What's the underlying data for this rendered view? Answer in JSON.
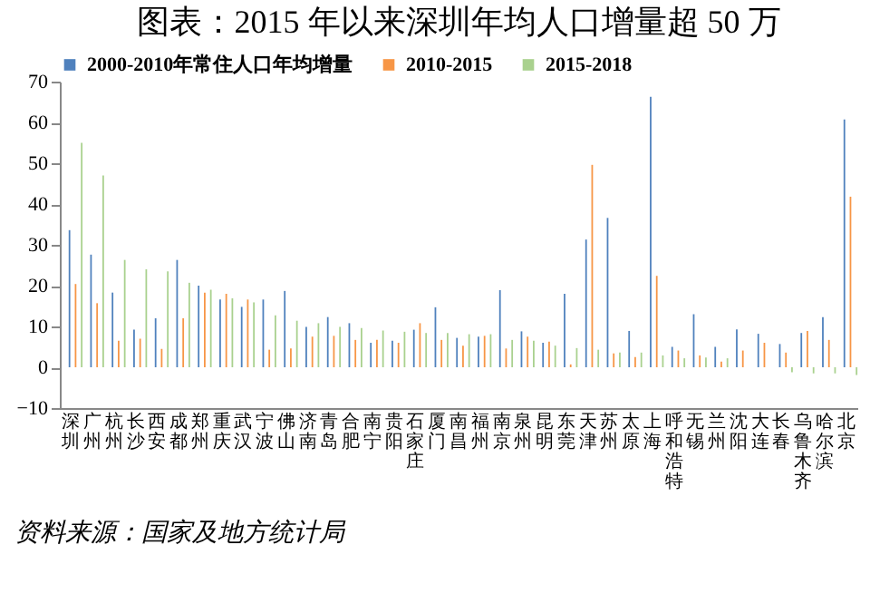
{
  "chart_data": {
    "type": "bar",
    "title": "图表：2015 年以来深圳年均人口增量超 50 万",
    "categories": [
      "深圳",
      "广州",
      "杭州",
      "长沙",
      "西安",
      "成都",
      "郑州",
      "重庆",
      "武汉",
      "宁波",
      "佛山",
      "济南",
      "青岛",
      "合肥",
      "南宁",
      "贵阳",
      "石家庄",
      "厦门",
      "南昌",
      "福州",
      "南京",
      "泉州",
      "昆明",
      "东莞",
      "天津",
      "苏州",
      "太原",
      "上海",
      "呼和浩特",
      "无锡",
      "兰州",
      "沈阳",
      "大连",
      "长春",
      "乌鲁木齐",
      "哈尔滨",
      "北京"
    ],
    "series": [
      {
        "name": "2000-2010年常住人口年均增量",
        "color": "#4f81bd",
        "values": [
          33.6,
          27.6,
          18.3,
          9.2,
          12,
          26.3,
          20,
          16.6,
          14.8,
          16.6,
          18.7,
          9.9,
          12.3,
          10.8,
          6,
          6.5,
          9.2,
          14.7,
          7.2,
          7.5,
          18.9,
          8.8,
          6,
          18,
          31.3,
          36.6,
          8.9,
          66.3,
          5,
          13,
          5,
          9.3,
          8.2,
          5.7,
          8.4,
          12.3,
          60.7
        ]
      },
      {
        "name": "2010-2015",
        "color": "#f79646",
        "values": [
          20.4,
          15.7,
          6.5,
          7,
          4.5,
          12,
          18.3,
          18,
          16.6,
          4.3,
          4.6,
          7.5,
          7.7,
          6.7,
          6.7,
          6,
          10.8,
          6.7,
          5.3,
          7.7,
          4.6,
          7.5,
          6.3,
          0.7,
          49.6,
          3.4,
          2.5,
          22.4,
          4.1,
          2.9,
          1.4,
          4.1,
          6,
          3.6,
          8.9,
          6.7,
          41.8
        ]
      },
      {
        "name": "2015-2018",
        "color": "#a9d18e",
        "values": [
          55,
          47,
          26.3,
          24,
          23.5,
          20.7,
          19,
          16.9,
          15.9,
          12.7,
          11.4,
          10.8,
          9.9,
          9.6,
          9,
          8.7,
          8.4,
          8.4,
          8.1,
          8.1,
          6.7,
          6.5,
          5.3,
          4.7,
          4.3,
          3.6,
          3.6,
          2.9,
          2.2,
          2.4,
          2.2,
          null,
          null,
          -1.2,
          -1.5,
          -1.5,
          -1.9
        ]
      }
    ],
    "ylim": [
      -10,
      70
    ],
    "yticks": [
      -10,
      0,
      10,
      20,
      30,
      40,
      50,
      60,
      70
    ],
    "grid": false,
    "legend": "top",
    "annotations": [
      "资料来源：国家及地方统计局"
    ]
  }
}
